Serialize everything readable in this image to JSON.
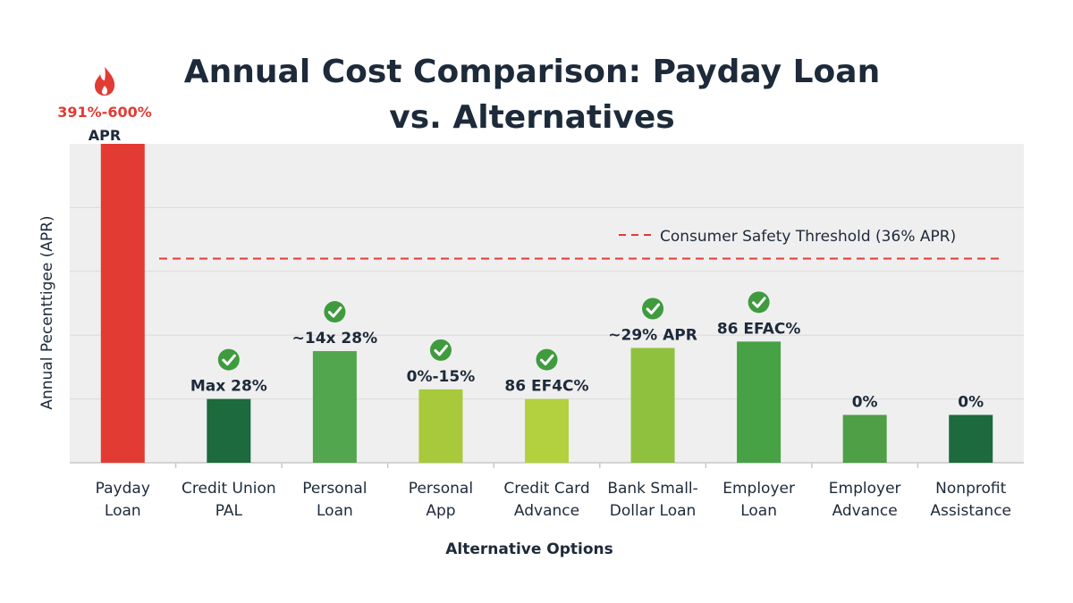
{
  "chart_data": {
    "type": "bar",
    "title_lines": [
      "Annual Cost Comparison: Payday Loan",
      "vs. Alternatives"
    ],
    "ylabel": "Annual Pecenttigee (APR)",
    "xlabel": "Alternative Options",
    "ylim": [
      0,
      100
    ],
    "grid": true,
    "categories": [
      {
        "lines": [
          "Payday",
          "Loan"
        ]
      },
      {
        "lines": [
          "Credit Union",
          "PAL"
        ]
      },
      {
        "lines": [
          "Personal",
          "Loan"
        ]
      },
      {
        "lines": [
          "Personal",
          "App"
        ]
      },
      {
        "lines": [
          "Credit Card",
          "Advance"
        ]
      },
      {
        "lines": [
          "Bank Small-",
          "Dollar Loan"
        ]
      },
      {
        "lines": [
          "Employer",
          "Loan"
        ]
      },
      {
        "lines": [
          "Employer",
          "Advance"
        ]
      },
      {
        "lines": [
          "Nonprofit",
          "Assistance"
        ]
      }
    ],
    "values": [
      100,
      20,
      35,
      23,
      20,
      36,
      38,
      15,
      15
    ],
    "bar_labels": [
      "",
      "Max 28%",
      "~14x 28%",
      "0%-15%",
      "86 EF4C%",
      "~29% APR",
      "86 EFAC%",
      "0%",
      "0%"
    ],
    "checkmarks": [
      false,
      true,
      true,
      true,
      true,
      true,
      true,
      false,
      false
    ],
    "colors": [
      "#e23b34",
      "#1c6a3d",
      "#52a64d",
      "#a8c93b",
      "#b3d13f",
      "#8fc13e",
      "#46a244",
      "#4e9f46",
      "#1c6a3d"
    ],
    "payday_annotation": {
      "range": "391%-600%",
      "unit": "APR",
      "icon": "flame-icon",
      "color": "#e23b34"
    },
    "threshold": {
      "label": "Consumer Safety Threshold (36% APR)",
      "value": 64,
      "color": "#e23b34"
    },
    "check_color": "#3f9b3e"
  }
}
